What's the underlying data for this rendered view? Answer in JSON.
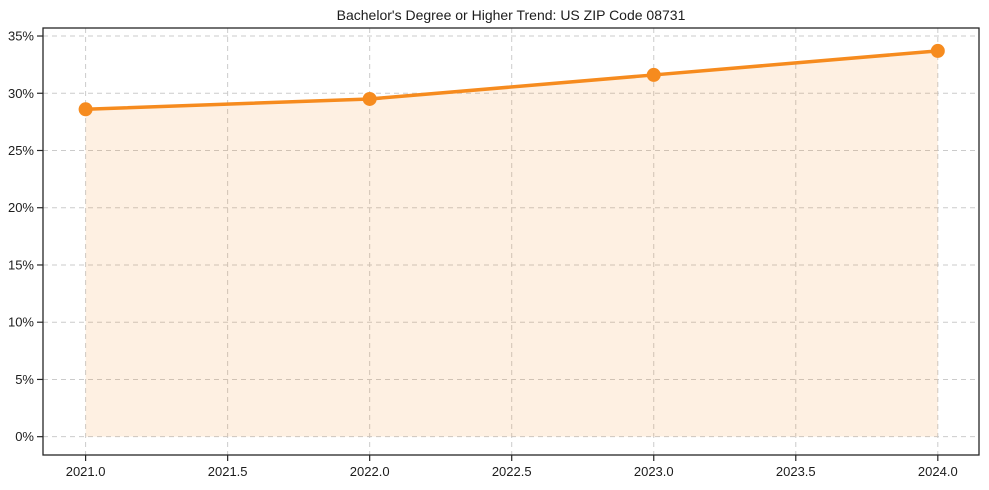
{
  "page": {
    "background": "#FFFFFF"
  },
  "chart_data": {
    "type": "line",
    "title": "Bachelor's Degree or Higher Trend: US ZIP Code 08731",
    "x": [
      2021,
      2022,
      2023,
      2024
    ],
    "values": [
      28.6,
      29.5,
      31.6,
      33.7
    ],
    "unit": "%",
    "xlabel": "",
    "ylabel": "",
    "xlim": [
      2020.85,
      2024.145
    ],
    "ylim": [
      -1.6,
      35.7
    ],
    "x_ticks": [
      2021.0,
      2021.5,
      2022.0,
      2022.5,
      2023.0,
      2023.5,
      2024.0
    ],
    "x_tick_labels": [
      "2021.0",
      "2021.5",
      "2022.0",
      "2022.5",
      "2023.0",
      "2023.5",
      "2024.0"
    ],
    "y_ticks": [
      0,
      5,
      10,
      15,
      20,
      25,
      30,
      35
    ],
    "y_tick_labels": [
      "0%",
      "5%",
      "10%",
      "15%",
      "20%",
      "25%",
      "30%",
      "35%"
    ],
    "grid": true,
    "grid_style": "dashed",
    "legend": "none",
    "area_fill": true,
    "fill_baseline": 0,
    "marker": "circle",
    "colors": {
      "line": "#F68B1E",
      "marker": "#F68B1E",
      "fill": "#F68B1E",
      "fill_opacity": 0.13,
      "grid": "#CBCBCB",
      "spine": "#262626",
      "tick_label": "#1C1C1C",
      "title": "#111111",
      "background": "#FFFFFF"
    }
  }
}
